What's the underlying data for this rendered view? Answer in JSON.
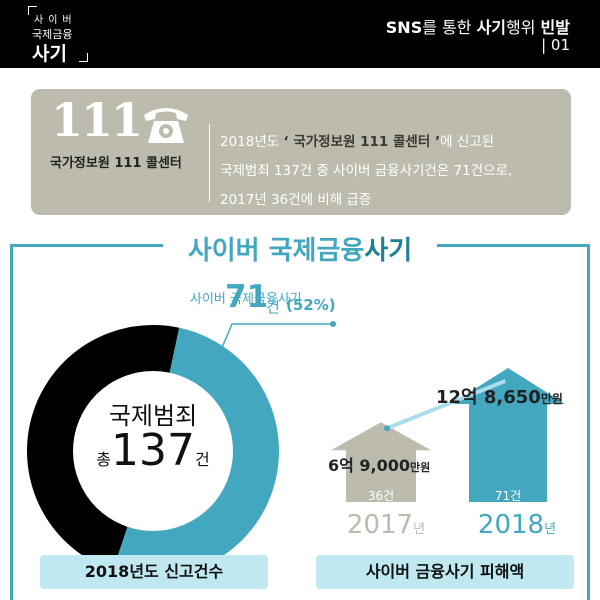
{
  "header": {
    "brand_line1": "사이버",
    "brand_line2": "국제금융",
    "brand_line3": "사기",
    "title_part1": "SNS",
    "title_part2": "를 통한 ",
    "title_part3": "사기",
    "title_part4": "행위 ",
    "title_part5": "빈발",
    "page": "| 01"
  },
  "call_center": {
    "number": "111",
    "icon": "telephone-icon",
    "name": "국가정보원 111 콜센터",
    "line1_a": "2018년도 ",
    "line1_b": "‘ 국가정보원 111 콜센터 ’",
    "line1_c": "에 신고된",
    "line2_a": "국제범죄 137건  중 ",
    "line2_b": "사이버 금융사기건",
    "line2_c": "은 ",
    "line2_d": "71건",
    "line2_e": "으로,",
    "line3_a": "2017년  36건에 비해 ",
    "line3_b": "급증"
  },
  "section": {
    "title_a": "사이버 국제금융",
    "title_b": "사기"
  },
  "donut": {
    "highlight_label": "사이버 국제금융사기",
    "highlight_value": "71",
    "highlight_unit": "건",
    "highlight_pct": "(52%)",
    "center_label": "국제범죄",
    "center_prefix": "총",
    "center_value": "137",
    "center_suffix": "건",
    "caption": "2018년도 신고건수"
  },
  "chart_data": {
    "type": "bar",
    "categories": [
      "2017",
      "2018"
    ],
    "series": [
      {
        "name": "",
        "values": [
          36,
          71
        ]
      }
    ],
    "amount_labels": [
      "6억 9,000만원",
      "12억 8,650만원"
    ],
    "donut_values": {
      "total": 137,
      "cyber_fraud": 71,
      "cyber_fraud_pct": 52
    },
    "caption": "사이버 금융사기 피해액"
  },
  "bars": {
    "y2017_amount": "6억 9,000",
    "y2017_amount_unit": "만원",
    "y2017_count": "36건",
    "y2017_year": "2017",
    "y2018_amount": "12억 8,650",
    "y2018_amount_unit": "만원",
    "y2018_count": "71건",
    "y2018_year": "2018",
    "year_suffix": "년",
    "caption": "사이버 금융사기 피해액"
  },
  "colors": {
    "accent_teal": "#43a7bf",
    "dark_teal": "#1d7f98",
    "beige": "#bdbbae",
    "light_teal": "#bfe8f0",
    "black": "#000000"
  }
}
